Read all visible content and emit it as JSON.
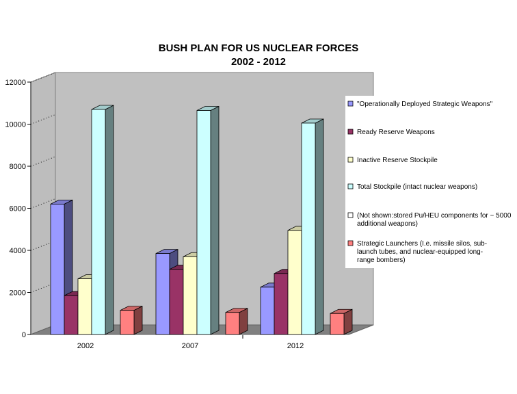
{
  "chart_data": {
    "type": "bar",
    "title_lines": [
      "BUSH PLAN FOR US NUCLEAR FORCES",
      "2002 - 2012"
    ],
    "categories": [
      "2002",
      "2007",
      "2012"
    ],
    "ylim": [
      0,
      12000
    ],
    "yticks": [
      0,
      2000,
      4000,
      6000,
      8000,
      10000,
      12000
    ],
    "ytick_labels": [
      "0",
      "2000",
      "4000",
      "6000",
      "8000",
      "10000",
      "12000"
    ],
    "grid": true,
    "legend_position": "right",
    "series": [
      {
        "name": "\"Operationally Deployed Strategic Weapons\"",
        "legend_lines": [
          "\"Operationally Deployed Strategic Weapons\""
        ],
        "color": "#9999ff",
        "values": [
          6200,
          3850,
          2250
        ]
      },
      {
        "name": "Ready Reserve Weapons",
        "legend_lines": [
          "Ready Reserve Weapons"
        ],
        "color": "#993366",
        "values": [
          1850,
          3100,
          2900
        ]
      },
      {
        "name": "Inactive Reserve Stockpile",
        "legend_lines": [
          "Inactive Reserve Stockpile"
        ],
        "color": "#ffffcc",
        "values": [
          2650,
          3700,
          4950
        ]
      },
      {
        "name": "Total Stockpile (intact nuclear weapons)",
        "legend_lines": [
          "Total Stockpile (intact nuclear weapons)"
        ],
        "color": "#ccffff",
        "values": [
          10700,
          10650,
          10050
        ]
      },
      {
        "name": "(Not shown:stored Pu/HEU components for ~ 5000 additional weapons)",
        "legend_lines": [
          "(Not shown:stored Pu/HEU components for ~ 5000",
          "additional weapons)"
        ],
        "color": "#ffffff",
        "values": [
          null,
          null,
          null
        ]
      },
      {
        "name": "Strategic Launchers (I.e. missile silos, sub-launch tubes, and nuclear-equipped long-range bombers)",
        "legend_lines": [
          "Strategic Launchers (I.e. missile silos, sub-",
          "launch tubes, and nuclear-equipped long-",
          "range bombers)"
        ],
        "color": "#ff8080",
        "values": [
          1150,
          1050,
          1000
        ]
      }
    ]
  }
}
